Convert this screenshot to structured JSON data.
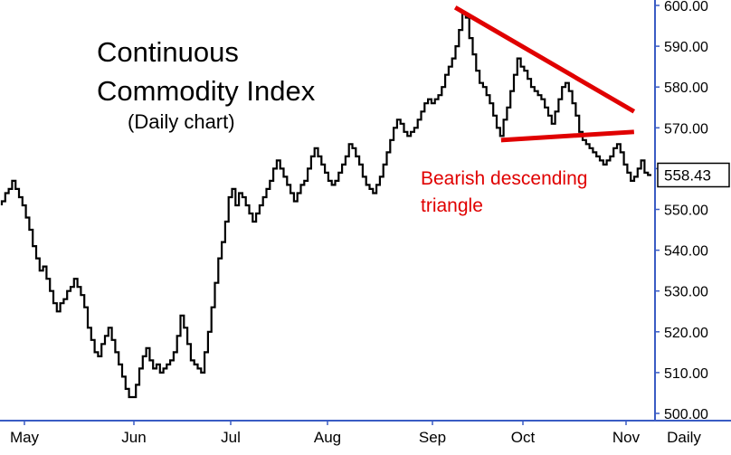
{
  "chart_data": {
    "type": "line",
    "title_lines": [
      "Continuous",
      "Commodity Index"
    ],
    "subtitle": "(Daily chart)",
    "annotation": [
      "Bearish descending",
      "triangle"
    ],
    "y_ticks": [
      "600.00",
      "590.00",
      "580.00",
      "570.00",
      "560.00",
      "550.00",
      "540.00",
      "530.00",
      "520.00",
      "510.00",
      "500.00"
    ],
    "ylim": [
      500,
      600
    ],
    "x_ticks": [
      "May",
      "Jun",
      "Jul",
      "Aug",
      "Sep",
      "Oct",
      "Nov"
    ],
    "period_label": "Daily",
    "last_price": "558.43",
    "colors": {
      "series": "#000000",
      "trendlines": "#e00000",
      "axis": "#3a5cc4",
      "last_price_bg": "#ffffff"
    },
    "series": [
      {
        "values": [
          551,
          552,
          554,
          555,
          557,
          555,
          553,
          551,
          548,
          545,
          541,
          538,
          535,
          536,
          533,
          530,
          527,
          525,
          527,
          528,
          530,
          531,
          533,
          531,
          529,
          526,
          521,
          518,
          515,
          514,
          517,
          519,
          521,
          518,
          515,
          512,
          509,
          506,
          504,
          504,
          507,
          511,
          514,
          516,
          513,
          511,
          512,
          510,
          511,
          512,
          513,
          515,
          519,
          524,
          521,
          517,
          513,
          512,
          511,
          510,
          515,
          520,
          526,
          532,
          538,
          542,
          547,
          553,
          555,
          551,
          554,
          553,
          551,
          549,
          547,
          549,
          551,
          553,
          555,
          557,
          560,
          562,
          560,
          558,
          556,
          554,
          552,
          554,
          556,
          557,
          560,
          563,
          565,
          563,
          561,
          559,
          557,
          556,
          557,
          559,
          561,
          563,
          566,
          565,
          563,
          561,
          558,
          556,
          555,
          554,
          556,
          558,
          561,
          564,
          567,
          570,
          572,
          571,
          569,
          568,
          569,
          570,
          572,
          574,
          576,
          577,
          576,
          577,
          578,
          580,
          583,
          585,
          587,
          590,
          594,
          598,
          597,
          592,
          588,
          584,
          581,
          580,
          578,
          576,
          573,
          570,
          568,
          572,
          575,
          579,
          583,
          587,
          585,
          584,
          582,
          580,
          579,
          578,
          577,
          575,
          573,
          571,
          574,
          577,
          580,
          581,
          579,
          576,
          573,
          569,
          567,
          566,
          565,
          564,
          563,
          562,
          561,
          562,
          563,
          565,
          566,
          564,
          561,
          559,
          557,
          558,
          560,
          562,
          559,
          558.43
        ]
      }
    ],
    "trendlines": [
      {
        "name": "descending resistance",
        "x": [
          0.695,
          0.968
        ],
        "y": [
          599.5,
          574
        ]
      },
      {
        "name": "horizontal support",
        "x": [
          0.765,
          0.968
        ],
        "y": [
          567,
          569
        ]
      }
    ]
  }
}
